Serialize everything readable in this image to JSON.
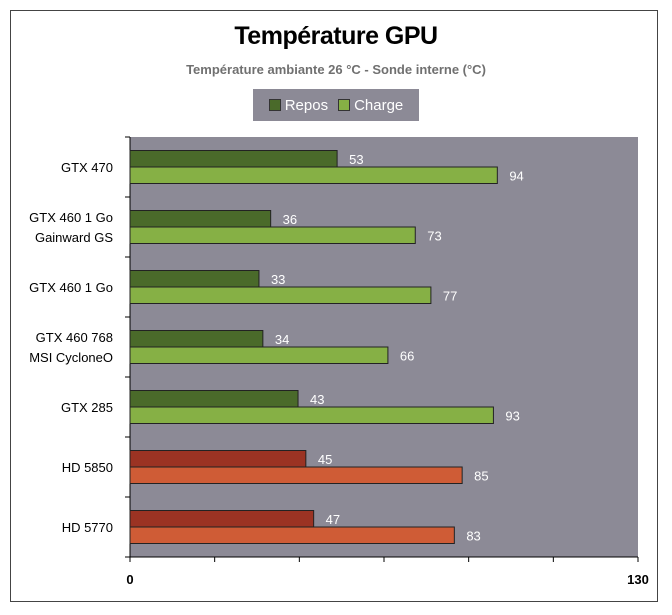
{
  "chart_data": {
    "type": "bar",
    "orientation": "horizontal",
    "title": "Température GPU",
    "subtitle": "Température ambiante 26 °C - Sonde interne (°C)",
    "categories": [
      "GTX 470",
      "GTX 460 1 Go\nGainward GS",
      "GTX 460 1 Go",
      "GTX 460 768\nMSI CycloneO",
      "GTX 285",
      "HD 5850",
      "HD 5770"
    ],
    "series": [
      {
        "name": "Repos",
        "values": [
          53,
          36,
          33,
          34,
          43,
          45,
          47
        ]
      },
      {
        "name": "Charge",
        "values": [
          94,
          73,
          77,
          66,
          93,
          85,
          83
        ]
      }
    ],
    "xlim": [
      0,
      130
    ],
    "x_tick_labels": [
      "0",
      "130"
    ],
    "legend_position": "top",
    "grid": false,
    "colors": {
      "nvidia_repos": "#4a6a2a",
      "nvidia_charge": "#86b045",
      "amd_repos": "#9b3323",
      "amd_charge": "#cf5c36",
      "plot_background": "#8c8a96",
      "value_label": "#ffffff"
    },
    "brand_groups": [
      "nvidia",
      "nvidia",
      "nvidia",
      "nvidia",
      "nvidia",
      "amd",
      "amd"
    ]
  }
}
